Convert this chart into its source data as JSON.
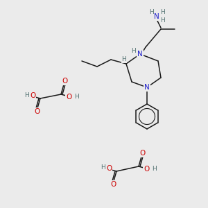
{
  "bg_color": "#ebebeb",
  "atom_colors": {
    "C": "#1a1a1a",
    "N": "#2020cc",
    "O": "#cc0000",
    "H": "#507070"
  },
  "figsize": [
    3.0,
    3.0
  ],
  "dpi": 100
}
